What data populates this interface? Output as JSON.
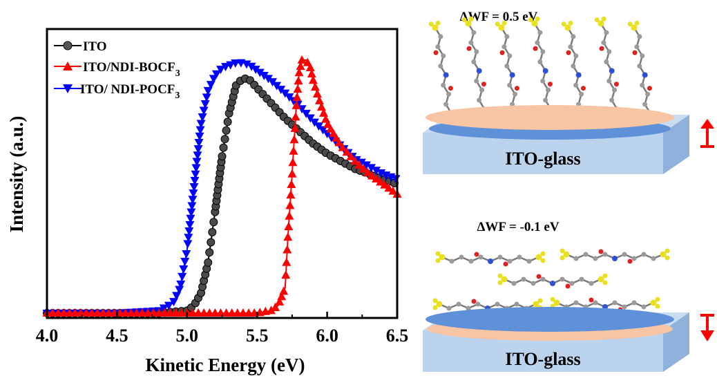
{
  "chart_data": {
    "type": "line",
    "xlabel": "Kinetic Energy (eV)",
    "ylabel": "Intensity (a.u.)",
    "xlim": [
      4.0,
      6.5
    ],
    "ylim": [
      0,
      1.0
    ],
    "xticks": [
      "4.0",
      "4.5",
      "5.0",
      "5.5",
      "6.0",
      "6.5"
    ],
    "y_tick_labels_shown": false,
    "grid": false,
    "legend_position": "top-left",
    "series": [
      {
        "name": "ITO",
        "color": "#000000",
        "marker": "sphere",
        "x": [
          4.0,
          4.5,
          4.8,
          5.0,
          5.05,
          5.1,
          5.15,
          5.2,
          5.25,
          5.3,
          5.35,
          5.4,
          5.45,
          5.5,
          5.6,
          5.7,
          5.8,
          5.9,
          6.0,
          6.1,
          6.2,
          6.3,
          6.4,
          6.5
        ],
        "y": [
          0.0,
          0.0,
          0.0,
          0.01,
          0.03,
          0.08,
          0.2,
          0.4,
          0.62,
          0.79,
          0.9,
          0.93,
          0.92,
          0.89,
          0.83,
          0.77,
          0.72,
          0.67,
          0.63,
          0.6,
          0.57,
          0.55,
          0.53,
          0.51
        ]
      },
      {
        "name": "ITO/NDI-BOCF3",
        "color": "#ff0000",
        "marker": "triangle-up",
        "x": [
          4.0,
          5.0,
          5.5,
          5.6,
          5.65,
          5.7,
          5.72,
          5.75,
          5.78,
          5.8,
          5.82,
          5.85,
          5.88,
          5.9,
          5.95,
          6.0,
          6.1,
          6.2,
          6.3,
          6.4,
          6.5
        ],
        "y": [
          0.0,
          0.0,
          0.0,
          0.01,
          0.03,
          0.1,
          0.3,
          0.55,
          0.82,
          0.95,
          1.0,
          1.0,
          0.97,
          0.92,
          0.83,
          0.75,
          0.66,
          0.6,
          0.55,
          0.51,
          0.47
        ]
      },
      {
        "name": "ITO/ NDI-POCF3",
        "color": "#0000ff",
        "marker": "triangle-down",
        "x": [
          4.0,
          4.5,
          4.8,
          4.9,
          4.95,
          5.0,
          5.05,
          5.1,
          5.15,
          5.2,
          5.25,
          5.3,
          5.35,
          5.4,
          5.45,
          5.5,
          5.6,
          5.7,
          5.8,
          5.9,
          6.0,
          6.1,
          6.2,
          6.3,
          6.4,
          6.5
        ],
        "y": [
          0.0,
          0.0,
          0.01,
          0.04,
          0.1,
          0.25,
          0.5,
          0.75,
          0.88,
          0.94,
          0.97,
          0.98,
          0.99,
          0.99,
          0.98,
          0.96,
          0.92,
          0.87,
          0.82,
          0.76,
          0.71,
          0.66,
          0.61,
          0.58,
          0.55,
          0.53
        ]
      }
    ]
  },
  "legend": {
    "ito": "ITO",
    "boc_main": "ITO/NDI-BOCF",
    "boc_sub": "3",
    "poc_main": "ITO/ NDI-POCF",
    "poc_sub": "3"
  },
  "schematic": {
    "top_wf": "ΔWF = 0.5 eV",
    "bottom_wf": "ΔWF = -0.1 eV",
    "substrate_label": "ITO-glass",
    "colors": {
      "glass": "#bcd3ee",
      "glass_side": "#8fb1dc",
      "orange_layer": "#f7c4a4",
      "blue_layer": "#5f91d8",
      "arrow": "#ff0000",
      "carbon": "#9a9a9a",
      "oxygen": "#e02020",
      "nitrogen": "#3050d0",
      "fluorine": "#e8e020"
    }
  }
}
